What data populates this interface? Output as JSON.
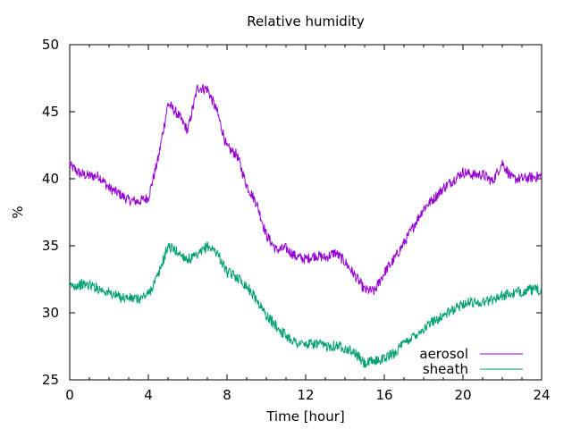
{
  "chart_data": {
    "type": "line",
    "title": "Relative humidity",
    "xlabel": "Time [hour]",
    "ylabel": "%",
    "xlim": [
      0,
      24
    ],
    "ylim": [
      25,
      50
    ],
    "xticks": [
      0,
      4,
      8,
      12,
      16,
      20,
      24
    ],
    "yticks": [
      25,
      30,
      35,
      40,
      45,
      50
    ],
    "grid": false,
    "legend_position": "bottom-right",
    "series": [
      {
        "name": "aerosol",
        "color": "#9400d3",
        "x": [
          0,
          0.5,
          1,
          1.5,
          2,
          2.5,
          3,
          3.5,
          4,
          4.5,
          5,
          5.5,
          6,
          6.5,
          7,
          7.5,
          8,
          8.5,
          9,
          9.5,
          10,
          10.5,
          11,
          11.5,
          12,
          12.5,
          13,
          13.5,
          14,
          14.5,
          15,
          15.5,
          16,
          16.5,
          17,
          17.5,
          18,
          18.5,
          19,
          19.5,
          20,
          20.5,
          21,
          21.5,
          22,
          22.5,
          23,
          23.5,
          24
        ],
        "y": [
          41.0,
          40.4,
          40.2,
          40.2,
          39.3,
          38.9,
          38.4,
          38.3,
          38.6,
          41.5,
          45.6,
          44.8,
          43.6,
          46.8,
          46.7,
          45.0,
          42.3,
          41.8,
          39.5,
          38.2,
          35.8,
          34.7,
          34.8,
          34.2,
          34.0,
          34.3,
          34.1,
          34.5,
          33.8,
          32.8,
          31.7,
          31.6,
          33.0,
          34.0,
          35.2,
          36.5,
          37.8,
          38.5,
          39.3,
          39.9,
          40.5,
          40.3,
          40.3,
          39.8,
          41.2,
          40.0,
          40.0,
          40.1,
          40.2
        ]
      },
      {
        "name": "sheath",
        "color": "#009e73",
        "x": [
          0,
          0.5,
          1,
          1.5,
          2,
          2.5,
          3,
          3.5,
          4,
          4.5,
          5,
          5.5,
          6,
          6.5,
          7,
          7.5,
          8,
          8.5,
          9,
          9.5,
          10,
          10.5,
          11,
          11.5,
          12,
          12.5,
          13,
          13.5,
          14,
          14.5,
          15,
          15.5,
          16,
          16.5,
          17,
          17.5,
          18,
          18.5,
          19,
          19.5,
          20,
          20.5,
          21,
          21.5,
          22,
          22.5,
          23,
          23.5,
          24
        ],
        "y": [
          32.0,
          32.1,
          32.1,
          31.8,
          31.5,
          31.2,
          31.1,
          31.0,
          31.4,
          32.8,
          35.0,
          34.5,
          34.0,
          34.2,
          35.0,
          34.5,
          33.0,
          32.7,
          32.0,
          31.0,
          29.8,
          29.0,
          28.3,
          27.8,
          27.6,
          27.7,
          27.5,
          27.6,
          27.4,
          27.0,
          26.2,
          26.4,
          26.6,
          27.0,
          27.7,
          28.3,
          28.8,
          29.4,
          29.8,
          30.2,
          30.7,
          30.8,
          30.8,
          31.0,
          31.3,
          31.4,
          31.6,
          31.7,
          31.7
        ]
      }
    ]
  }
}
